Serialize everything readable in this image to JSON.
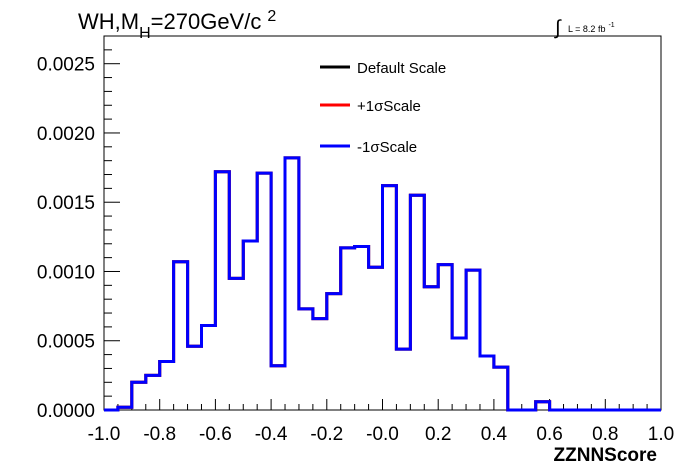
{
  "title": {
    "prefix": "WH,M",
    "subscript": "H",
    "middle": "=270GeV/c",
    "superscript": "2"
  },
  "lumi": {
    "integral": "∫",
    "text": "L = 8.2 fb",
    "superscript": "-1"
  },
  "chart_data": {
    "type": "histogram",
    "title": "WH,MH=270GeV/c2",
    "xlabel": "ZZNNScore",
    "ylabel": "",
    "xlim": [
      -1.0,
      1.0
    ],
    "ylim": [
      0,
      0.0027
    ],
    "grid": false,
    "legend_position": "top-center",
    "x_ticks": [
      "-1.0",
      "-0.8",
      "-0.6",
      "-0.4",
      "-0.2",
      "-0.0",
      "0.2",
      "0.4",
      "0.6",
      "0.8",
      "1.0"
    ],
    "y_ticks": [
      "0.0000",
      "0.0005",
      "0.0010",
      "0.0015",
      "0.0020",
      "0.0025"
    ],
    "bin_edges": [
      -1.0,
      -0.95,
      -0.9,
      -0.85,
      -0.8,
      -0.75,
      -0.7,
      -0.65,
      -0.6,
      -0.55,
      -0.5,
      -0.45,
      -0.4,
      -0.35,
      -0.3,
      -0.25,
      -0.2,
      -0.15,
      -0.1,
      -0.05,
      0.0,
      0.05,
      0.1,
      0.15,
      0.2,
      0.25,
      0.3,
      0.35,
      0.4,
      0.45,
      0.5,
      0.55,
      0.6,
      0.65,
      0.7,
      0.75,
      0.8,
      0.85,
      0.9,
      0.95,
      1.0
    ],
    "series": [
      {
        "name": "Default Scale",
        "color": "#000000",
        "values": [
          0.0,
          2e-05,
          0.0002,
          0.00025,
          0.00035,
          0.00107,
          0.00046,
          0.00061,
          0.00172,
          0.00095,
          0.00122,
          0.00171,
          0.00032,
          0.00182,
          0.00073,
          0.00066,
          0.00084,
          0.00117,
          0.00118,
          0.00103,
          0.00162,
          0.00044,
          0.00155,
          0.00089,
          0.00105,
          0.00052,
          0.00101,
          0.00039,
          0.00031,
          0.0,
          0.0,
          6e-05,
          0.0,
          0.0,
          0.0,
          0.0,
          0.0,
          0.0,
          0.0,
          0.0
        ]
      },
      {
        "name": "+1σScale",
        "color": "#ff0000",
        "values": [
          0.0,
          2e-05,
          0.0002,
          0.00025,
          0.00035,
          0.00107,
          0.00046,
          0.00061,
          0.00172,
          0.00095,
          0.00122,
          0.00171,
          0.00032,
          0.00182,
          0.00073,
          0.00066,
          0.00084,
          0.00117,
          0.00118,
          0.00103,
          0.00162,
          0.00044,
          0.00155,
          0.00089,
          0.00105,
          0.00052,
          0.00101,
          0.00039,
          0.00031,
          0.0,
          0.0,
          6e-05,
          0.0,
          0.0,
          0.0,
          0.0,
          0.0,
          0.0,
          0.0,
          0.0
        ]
      },
      {
        "name": "-1σScale",
        "color": "#0000ff",
        "values": [
          0.0,
          2e-05,
          0.0002,
          0.00025,
          0.00035,
          0.00107,
          0.00046,
          0.00061,
          0.00172,
          0.00095,
          0.00122,
          0.00171,
          0.00032,
          0.00182,
          0.00073,
          0.00066,
          0.00084,
          0.00117,
          0.00118,
          0.00103,
          0.00162,
          0.00044,
          0.00155,
          0.00089,
          0.00105,
          0.00052,
          0.00101,
          0.00039,
          0.00031,
          0.0,
          0.0,
          6e-05,
          0.0,
          0.0,
          0.0,
          0.0,
          0.0,
          0.0,
          0.0,
          0.0
        ]
      }
    ]
  }
}
